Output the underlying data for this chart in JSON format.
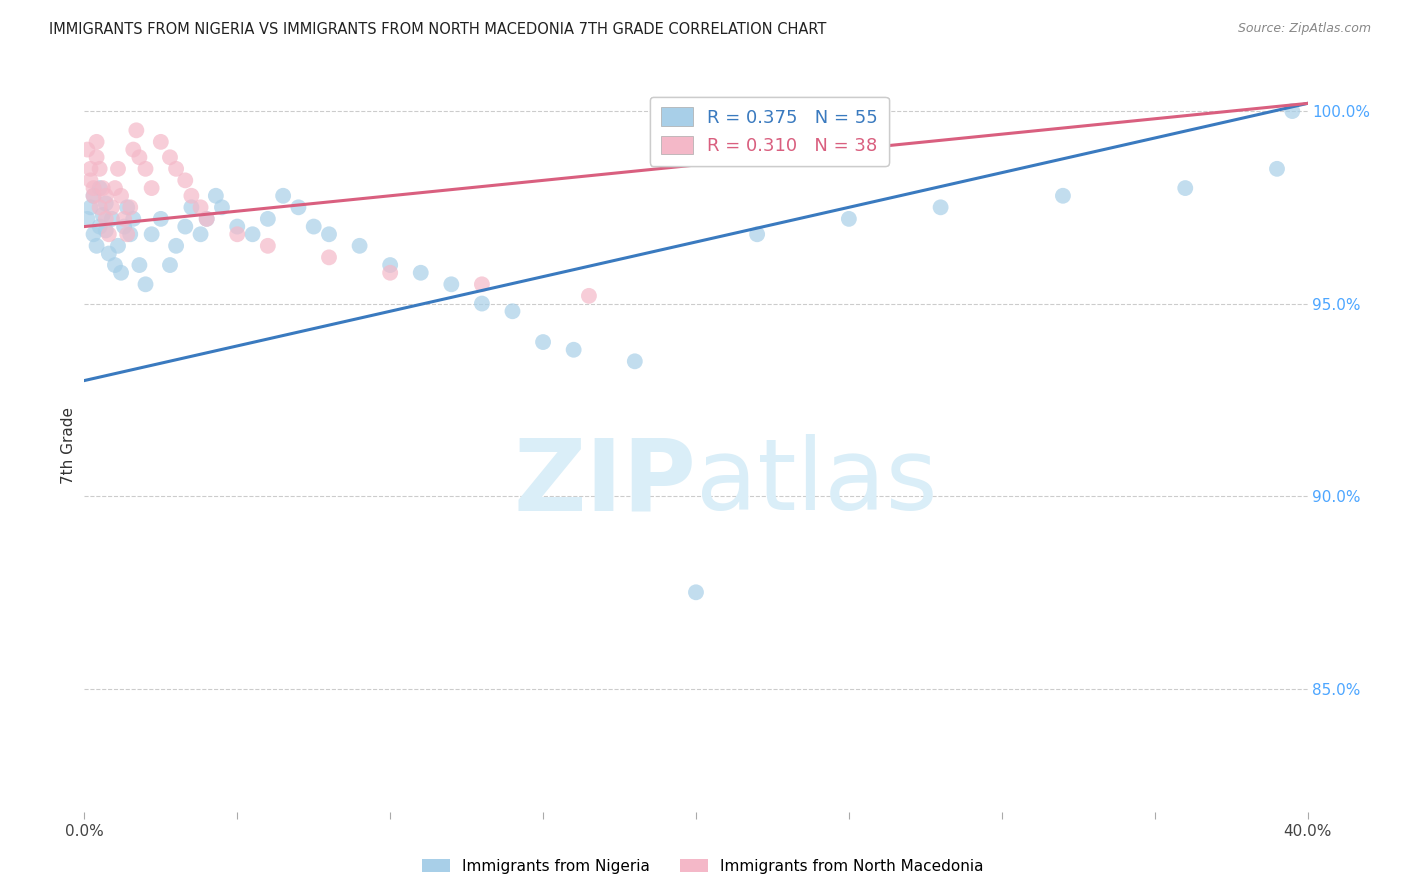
{
  "title": "IMMIGRANTS FROM NIGERIA VS IMMIGRANTS FROM NORTH MACEDONIA 7TH GRADE CORRELATION CHART",
  "source": "Source: ZipAtlas.com",
  "ylabel": "7th Grade",
  "legend_nigeria": "Immigrants from Nigeria",
  "legend_macedonia": "Immigrants from North Macedonia",
  "r_nigeria": 0.375,
  "n_nigeria": 55,
  "r_macedonia": 0.31,
  "n_macedonia": 38,
  "color_nigeria": "#a8cfe8",
  "color_macedonia": "#f4b8c8",
  "color_nigeria_line": "#3a7abf",
  "color_macedonia_line": "#d95f7f",
  "color_right_axis": "#4da6ff",
  "watermark_color": "#daeef8",
  "xmin": 0.0,
  "xmax": 0.4,
  "ymin": 0.818,
  "ymax": 1.008,
  "yticks_right": [
    1.0,
    0.95,
    0.9,
    0.85
  ],
  "ytick_labels_right": [
    "100.0%",
    "95.0%",
    "90.0%",
    "85.0%"
  ],
  "grid_color": "#cccccc",
  "bg_color": "#ffffff",
  "nigeria_line_x0": 0.0,
  "nigeria_line_y0": 0.93,
  "nigeria_line_x1": 0.4,
  "nigeria_line_y1": 1.002,
  "macedonia_line_x0": 0.0,
  "macedonia_line_y0": 0.97,
  "macedonia_line_x1": 0.4,
  "macedonia_line_y1": 1.002,
  "ng_x": [
    0.001,
    0.002,
    0.003,
    0.003,
    0.004,
    0.005,
    0.005,
    0.006,
    0.007,
    0.007,
    0.008,
    0.009,
    0.01,
    0.011,
    0.012,
    0.013,
    0.014,
    0.015,
    0.016,
    0.018,
    0.02,
    0.022,
    0.025,
    0.028,
    0.03,
    0.033,
    0.035,
    0.038,
    0.04,
    0.043,
    0.045,
    0.05,
    0.055,
    0.06,
    0.065,
    0.07,
    0.075,
    0.08,
    0.09,
    0.1,
    0.11,
    0.12,
    0.13,
    0.14,
    0.15,
    0.16,
    0.18,
    0.2,
    0.22,
    0.25,
    0.28,
    0.32,
    0.36,
    0.39,
    0.395
  ],
  "ng_y": [
    0.972,
    0.975,
    0.968,
    0.978,
    0.965,
    0.97,
    0.98,
    0.973,
    0.976,
    0.969,
    0.963,
    0.972,
    0.96,
    0.965,
    0.958,
    0.97,
    0.975,
    0.968,
    0.972,
    0.96,
    0.955,
    0.968,
    0.972,
    0.96,
    0.965,
    0.97,
    0.975,
    0.968,
    0.972,
    0.978,
    0.975,
    0.97,
    0.968,
    0.972,
    0.978,
    0.975,
    0.97,
    0.968,
    0.965,
    0.96,
    0.958,
    0.955,
    0.95,
    0.948,
    0.94,
    0.938,
    0.935,
    0.875,
    0.968,
    0.972,
    0.975,
    0.978,
    0.98,
    0.985,
    1.0
  ],
  "ma_x": [
    0.001,
    0.002,
    0.002,
    0.003,
    0.003,
    0.004,
    0.004,
    0.005,
    0.005,
    0.006,
    0.007,
    0.007,
    0.008,
    0.009,
    0.01,
    0.011,
    0.012,
    0.013,
    0.014,
    0.015,
    0.016,
    0.017,
    0.018,
    0.02,
    0.022,
    0.025,
    0.028,
    0.03,
    0.033,
    0.035,
    0.038,
    0.04,
    0.05,
    0.06,
    0.08,
    0.1,
    0.13,
    0.165
  ],
  "ma_y": [
    0.99,
    0.985,
    0.982,
    0.98,
    0.978,
    0.992,
    0.988,
    0.985,
    0.975,
    0.98,
    0.978,
    0.972,
    0.968,
    0.975,
    0.98,
    0.985,
    0.978,
    0.972,
    0.968,
    0.975,
    0.99,
    0.995,
    0.988,
    0.985,
    0.98,
    0.992,
    0.988,
    0.985,
    0.982,
    0.978,
    0.975,
    0.972,
    0.968,
    0.965,
    0.962,
    0.958,
    0.955,
    0.952
  ]
}
